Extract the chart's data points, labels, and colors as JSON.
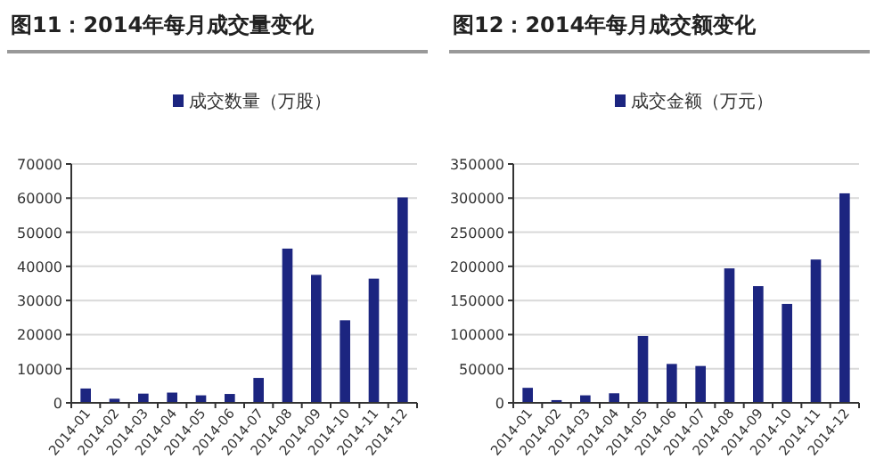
{
  "chart_data": [
    {
      "type": "bar",
      "title": "图11：2014年每月成交量变化",
      "categories": [
        "2014-01",
        "2014-02",
        "2014-03",
        "2014-04",
        "2014-05",
        "2014-06",
        "2014-07",
        "2014-08",
        "2014-09",
        "2014-10",
        "2014-11",
        "2014-12"
      ],
      "series": [
        {
          "name": "成交数量（万股）",
          "color": "#1c2580",
          "values": [
            4200,
            1200,
            2700,
            3000,
            2200,
            2600,
            7300,
            45200,
            37500,
            24200,
            36400,
            60200
          ]
        }
      ],
      "ylim": [
        0,
        70000
      ],
      "yticks": [
        0,
        10000,
        20000,
        30000,
        40000,
        50000,
        60000,
        70000
      ],
      "grid": "y",
      "legend": "top"
    },
    {
      "type": "bar",
      "title": "图12：2014年每月成交额变化",
      "categories": [
        "2014-01",
        "2014-02",
        "2014-03",
        "2014-04",
        "2014-05",
        "2014-06",
        "2014-07",
        "2014-08",
        "2014-09",
        "2014-10",
        "2014-11",
        "2014-12"
      ],
      "series": [
        {
          "name": "成交金额（万元）",
          "color": "#1c2580",
          "values": [
            22000,
            4000,
            11000,
            14000,
            98000,
            57000,
            54000,
            197000,
            171000,
            145000,
            210000,
            307000
          ]
        }
      ],
      "ylim": [
        0,
        350000
      ],
      "yticks": [
        0,
        50000,
        100000,
        150000,
        200000,
        250000,
        300000,
        350000
      ],
      "grid": "y",
      "legend": "top"
    }
  ]
}
